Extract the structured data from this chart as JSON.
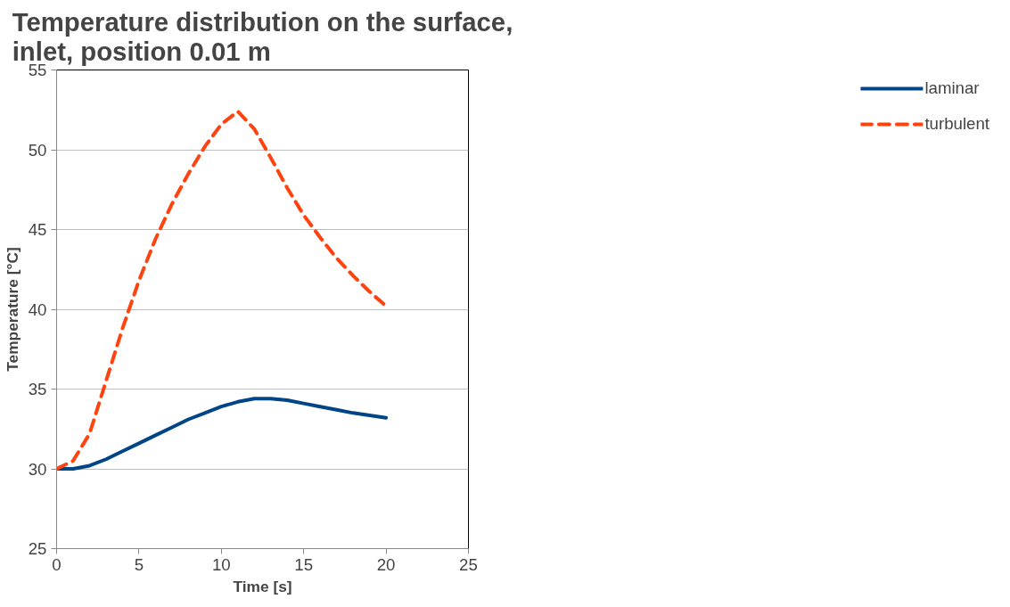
{
  "chart_data": {
    "type": "line",
    "title": "Temperature distribution on the surface,\ninlet, position 0.01 m",
    "xlabel": "Time [s]",
    "ylabel": "Temperature [°C]",
    "x": [
      0,
      1,
      2,
      3,
      4,
      5,
      6,
      7,
      8,
      9,
      10,
      11,
      12,
      13,
      14,
      15,
      16,
      17,
      18,
      19,
      20
    ],
    "series": [
      {
        "name": "laminar",
        "color": "#004586",
        "line_style": "solid",
        "values": [
          30,
          30,
          30.2,
          30.6,
          31.1,
          31.6,
          32.1,
          32.6,
          33.1,
          33.5,
          33.9,
          34.2,
          34.4,
          34.4,
          34.3,
          34.1,
          33.9,
          33.7,
          33.5,
          33.35,
          33.2
        ]
      },
      {
        "name": "turbulent",
        "color": "#ff420e",
        "line_style": "dashed",
        "values": [
          30,
          30.5,
          32.2,
          35.5,
          38.8,
          41.8,
          44.4,
          46.6,
          48.5,
          50.2,
          51.6,
          52.4,
          51.3,
          49.5,
          47.6,
          45.9,
          44.5,
          43.2,
          42.1,
          41.1,
          40.2
        ]
      }
    ],
    "xlim": [
      0,
      25
    ],
    "xticks": [
      0,
      5,
      10,
      15,
      20,
      25
    ],
    "ylim": [
      25,
      55
    ],
    "yticks": [
      25,
      30,
      35,
      40,
      45,
      50,
      55
    ],
    "grid": "y",
    "legend": "right",
    "marker": "none"
  }
}
